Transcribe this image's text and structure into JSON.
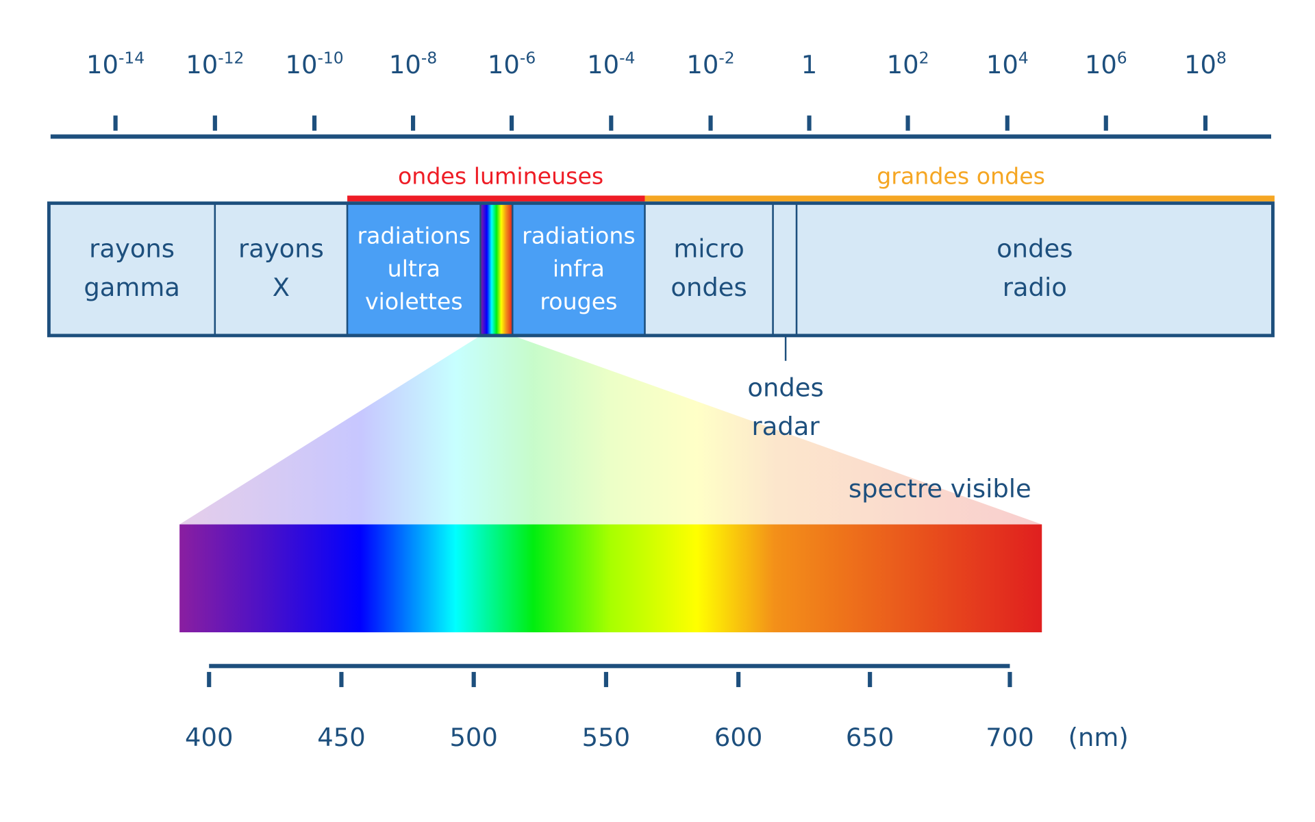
{
  "wavelength_scale": {
    "ticks": [
      {
        "base": "10",
        "exponent": "-14"
      },
      {
        "base": "10",
        "exponent": "-12"
      },
      {
        "base": "10",
        "exponent": "-10"
      },
      {
        "base": "10",
        "exponent": "-8"
      },
      {
        "base": "10",
        "exponent": "-6"
      },
      {
        "base": "10",
        "exponent": "-4"
      },
      {
        "base": "10",
        "exponent": "-2"
      },
      {
        "base": "1"
      },
      {
        "base": "10",
        "exponent": "2"
      },
      {
        "base": "10",
        "exponent": "4"
      },
      {
        "base": "10",
        "exponent": "6"
      },
      {
        "base": "10",
        "exponent": "8"
      }
    ]
  },
  "groups": [
    {
      "label": "ondes lumineuses",
      "color": "#ee1c25"
    },
    {
      "label": "grandes ondes",
      "color": "#f5a623"
    }
  ],
  "bands": [
    {
      "lines": [
        "rayons",
        "gamma"
      ]
    },
    {
      "lines": [
        "rayons",
        "X"
      ]
    },
    {
      "lines": [
        "radiations",
        "ultra",
        "violettes"
      ]
    },
    {
      "lines": []
    },
    {
      "lines": [
        "radiations",
        "infra",
        "rouges"
      ]
    },
    {
      "lines": [
        "micro",
        "ondes"
      ]
    },
    {
      "lines": []
    },
    {
      "lines": [
        "ondes",
        "radio"
      ]
    }
  ],
  "radar_label": {
    "lines": [
      "ondes",
      "radar"
    ]
  },
  "visible_label": "spectre visible",
  "nm_scale": {
    "ticks": [
      400,
      450,
      500,
      550,
      600,
      650,
      700
    ],
    "unit": "(nm)"
  }
}
